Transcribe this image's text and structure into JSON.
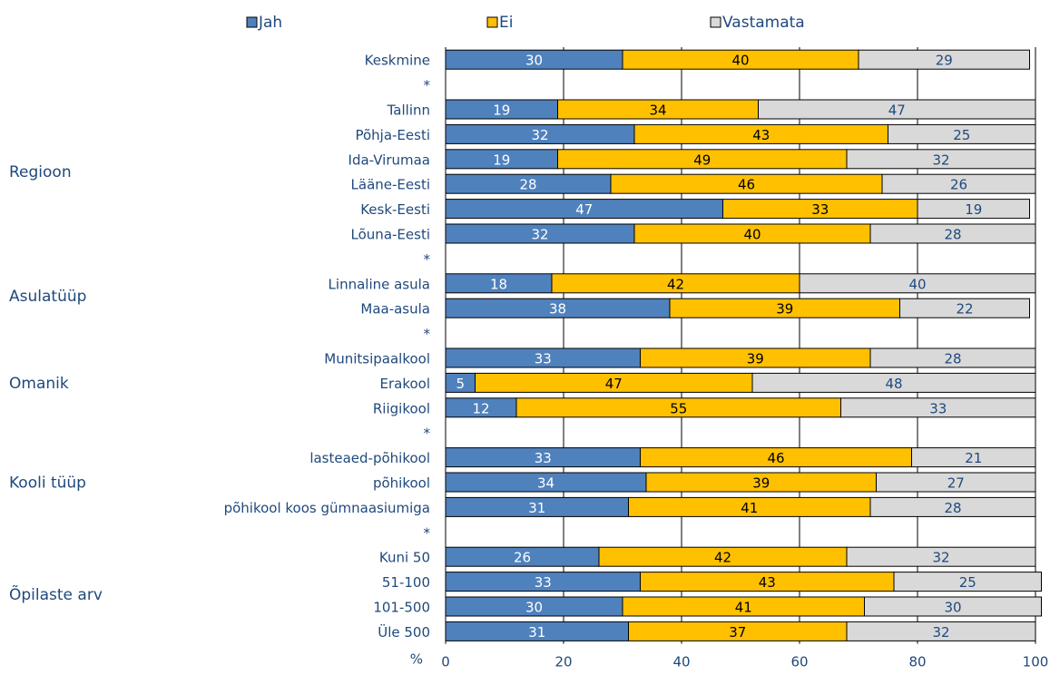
{
  "chart_data": {
    "type": "bar",
    "orientation": "horizontal",
    "stacked": true,
    "legend": {
      "position": "top",
      "items": [
        {
          "name": "Jah",
          "color": "#4F81BD"
        },
        {
          "name": "Ei",
          "color": "#FFC000"
        },
        {
          "name": "Vastamata",
          "color": "#D9D9D9"
        }
      ]
    },
    "xlabel": "%",
    "xlim": [
      0,
      100
    ],
    "xticks": [
      "0",
      "20",
      "40",
      "60",
      "80",
      "100"
    ],
    "grid": true,
    "groups": [
      {
        "label": "Regioon",
        "first_row": 2,
        "last_row": 7
      },
      {
        "label": "Asulatüüp",
        "first_row": 9,
        "last_row": 10
      },
      {
        "label": "Omanik",
        "first_row": 12,
        "last_row": 14
      },
      {
        "label": "Kooli tüüp",
        "first_row": 16,
        "last_row": 18
      },
      {
        "label": "Õpilaste arv",
        "first_row": 20,
        "last_row": 23
      }
    ],
    "rows": [
      {
        "label": "Keskmine",
        "values": [
          30,
          40,
          29
        ]
      },
      {
        "label": "*",
        "values": null
      },
      {
        "label": "Tallinn",
        "values": [
          19,
          34,
          47
        ]
      },
      {
        "label": "Põhja-Eesti",
        "values": [
          32,
          43,
          25
        ]
      },
      {
        "label": "Ida-Virumaa",
        "values": [
          19,
          49,
          32
        ]
      },
      {
        "label": "Lääne-Eesti",
        "values": [
          28,
          46,
          26
        ]
      },
      {
        "label": "Kesk-Eesti",
        "values": [
          47,
          33,
          19
        ]
      },
      {
        "label": "Lõuna-Eesti",
        "values": [
          32,
          40,
          28
        ]
      },
      {
        "label": "*",
        "values": null
      },
      {
        "label": "Linnaline asula",
        "values": [
          18,
          42,
          40
        ]
      },
      {
        "label": "Maa-asula",
        "values": [
          38,
          39,
          22
        ]
      },
      {
        "label": "*",
        "values": null
      },
      {
        "label": "Munitsipaalkool",
        "values": [
          33,
          39,
          28
        ]
      },
      {
        "label": "Erakool",
        "values": [
          5,
          47,
          48
        ]
      },
      {
        "label": "Riigikool",
        "values": [
          12,
          55,
          33
        ]
      },
      {
        "label": "*",
        "values": null
      },
      {
        "label": "lasteaed-põhikool",
        "values": [
          33,
          46,
          21
        ]
      },
      {
        "label": "põhikool",
        "values": [
          34,
          39,
          27
        ]
      },
      {
        "label": "põhikool koos gümnaasiumiga",
        "values": [
          31,
          41,
          28
        ]
      },
      {
        "label": "*",
        "values": null
      },
      {
        "label": "Kuni 50",
        "values": [
          26,
          42,
          32
        ]
      },
      {
        "label": "51-100",
        "values": [
          33,
          43,
          25
        ]
      },
      {
        "label": "101-500",
        "values": [
          30,
          41,
          30
        ]
      },
      {
        "label": "Üle 500",
        "values": [
          31,
          37,
          32
        ]
      }
    ]
  }
}
